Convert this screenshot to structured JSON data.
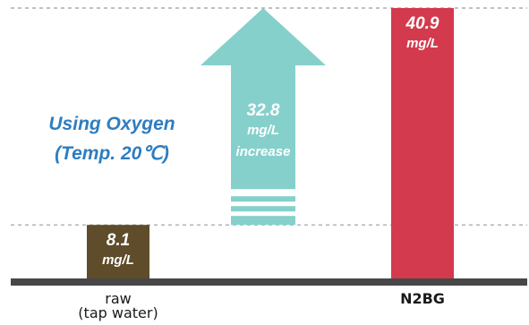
{
  "chart_data": {
    "type": "bar",
    "title": "",
    "xlabel": "",
    "ylabel": "",
    "ylim": [
      0,
      40.9
    ],
    "grid": "dashed reference lines at the raw and N2BG levels",
    "legend": "none",
    "categories": [
      "raw (tap water)",
      "N2BG"
    ],
    "category_lines": [
      [
        "raw",
        "(tap water)"
      ],
      [
        "N2BG"
      ]
    ],
    "values": [
      8.1,
      40.9
    ],
    "value_labels": [
      "8.1",
      "40.9"
    ],
    "unit": "mg/L",
    "colors": [
      "#5E4C2A",
      "#D33A4D"
    ],
    "annotation": {
      "title_lines": [
        "Using Oxygen",
        "(Temp. 20℃)"
      ],
      "increase_value": "32.8",
      "increase_unit": "mg/L",
      "increase_word": "increase",
      "arrow_color": "#86D0CC",
      "title_color": "#2E7DC0"
    },
    "baseline_color": "#474747",
    "dash_color": "#9A9A9A"
  }
}
